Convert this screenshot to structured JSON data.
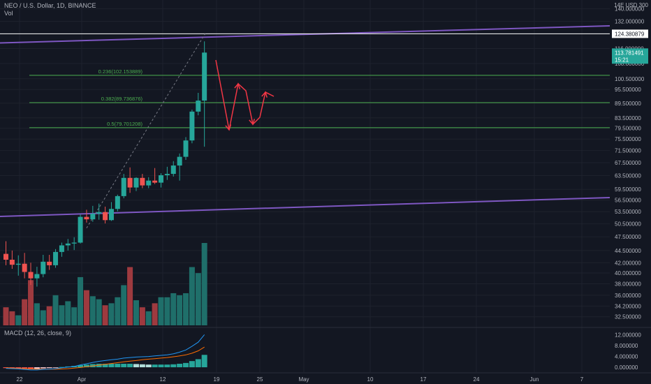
{
  "header": {
    "symbol_title": "NEO / U.S. Dollar, 1D, BINANCE",
    "volume_label": "Vol",
    "price_scale_header": "14E USD 300"
  },
  "macd": {
    "label": "MACD (12, 26, close, 9)"
  },
  "colors": {
    "background": "#131722",
    "grid": "#1e222d",
    "up": "#26a69a",
    "down": "#ef5350",
    "vol_up": "#1f6f6a",
    "vol_down": "#9e3a3f",
    "trendline": "#7e57c2",
    "fib": "#4caf50",
    "arrow": "#f23645",
    "text": "#b2b5be",
    "macd_line": "#2196f3",
    "signal_line": "#ff6d00",
    "current_price_bg": "#26a69a"
  },
  "chart_data": {
    "type": "candlestick",
    "title": "NEO / U.S. Dollar, 1D, BINANCE",
    "x_tick_labels": [
      "22",
      "Apr",
      "12",
      "19",
      "25",
      "May",
      "10",
      "17",
      "24",
      "Jun",
      "7"
    ],
    "price_axis": {
      "scale": "log",
      "range": [
        31.0,
        146.0
      ],
      "tick_labels": [
        "140.000000",
        "132.000000",
        "116.000000",
        "108.000000",
        "100.500000",
        "95.500000",
        "89.500000",
        "83.500000",
        "79.500000",
        "75.500000",
        "71.500000",
        "67.500000",
        "63.500000",
        "59.500000",
        "56.500000",
        "53.500000",
        "50.500000",
        "47.500000",
        "44.500000",
        "42.000000",
        "40.000000",
        "38.000000",
        "36.000000",
        "34.200000",
        "32.500000"
      ]
    },
    "highlighted_prices": {
      "high_line": "124.380879",
      "current_price": "113.781491",
      "countdown": "15:21"
    },
    "fib_levels": [
      {
        "ratio": "0.236",
        "price": 102.153889,
        "label": "0.236(102.153889)"
      },
      {
        "ratio": "0.382",
        "price": 89.736876,
        "label": "0.382(89.736876)"
      },
      {
        "ratio": "0.5",
        "price": 79.701208,
        "label": "0.5(79.701208)"
      }
    ],
    "candles": [
      {
        "o": 43.8,
        "h": 46.5,
        "l": 41.5,
        "c": 42.6,
        "v": 18
      },
      {
        "o": 42.6,
        "h": 44.5,
        "l": 40.8,
        "c": 41.6,
        "v": 14
      },
      {
        "o": 41.6,
        "h": 43.5,
        "l": 39.5,
        "c": 41.8,
        "v": 10
      },
      {
        "o": 41.8,
        "h": 44.0,
        "l": 39.0,
        "c": 40.2,
        "v": 26
      },
      {
        "o": 40.2,
        "h": 42.0,
        "l": 37.8,
        "c": 39.0,
        "v": 45
      },
      {
        "o": 39.0,
        "h": 41.2,
        "l": 37.5,
        "c": 39.8,
        "v": 22
      },
      {
        "o": 39.8,
        "h": 43.6,
        "l": 39.2,
        "c": 42.2,
        "v": 15
      },
      {
        "o": 42.2,
        "h": 43.6,
        "l": 40.6,
        "c": 41.5,
        "v": 19
      },
      {
        "o": 41.5,
        "h": 44.8,
        "l": 41.0,
        "c": 44.2,
        "v": 30
      },
      {
        "o": 44.2,
        "h": 46.2,
        "l": 43.2,
        "c": 45.6,
        "v": 20
      },
      {
        "o": 45.6,
        "h": 47.0,
        "l": 44.5,
        "c": 46.0,
        "v": 24
      },
      {
        "o": 46.0,
        "h": 47.4,
        "l": 44.6,
        "c": 46.2,
        "v": 18
      },
      {
        "o": 46.2,
        "h": 52.8,
        "l": 46.0,
        "c": 52.2,
        "v": 48
      },
      {
        "o": 52.2,
        "h": 54.0,
        "l": 50.8,
        "c": 51.6,
        "v": 35
      },
      {
        "o": 51.6,
        "h": 55.0,
        "l": 51.0,
        "c": 53.0,
        "v": 29
      },
      {
        "o": 53.0,
        "h": 55.6,
        "l": 51.5,
        "c": 53.4,
        "v": 26
      },
      {
        "o": 53.4,
        "h": 54.8,
        "l": 50.6,
        "c": 51.4,
        "v": 20
      },
      {
        "o": 51.4,
        "h": 56.0,
        "l": 51.2,
        "c": 54.2,
        "v": 22
      },
      {
        "o": 54.2,
        "h": 58.0,
        "l": 53.6,
        "c": 57.6,
        "v": 28
      },
      {
        "o": 57.6,
        "h": 64.0,
        "l": 57.0,
        "c": 62.8,
        "v": 40
      },
      {
        "o": 62.8,
        "h": 66.0,
        "l": 58.5,
        "c": 60.0,
        "v": 58
      },
      {
        "o": 60.0,
        "h": 63.0,
        "l": 59.0,
        "c": 62.8,
        "v": 25
      },
      {
        "o": 62.8,
        "h": 64.0,
        "l": 59.8,
        "c": 60.6,
        "v": 18
      },
      {
        "o": 60.6,
        "h": 63.0,
        "l": 59.8,
        "c": 62.0,
        "v": 14
      },
      {
        "o": 62.0,
        "h": 65.8,
        "l": 61.0,
        "c": 61.4,
        "v": 22
      },
      {
        "o": 61.4,
        "h": 64.2,
        "l": 60.0,
        "c": 63.6,
        "v": 28
      },
      {
        "o": 63.6,
        "h": 66.2,
        "l": 62.2,
        "c": 64.0,
        "v": 28
      },
      {
        "o": 64.0,
        "h": 68.0,
        "l": 63.2,
        "c": 66.6,
        "v": 32
      },
      {
        "o": 66.6,
        "h": 70.5,
        "l": 62.0,
        "c": 69.4,
        "v": 30
      },
      {
        "o": 69.4,
        "h": 76.2,
        "l": 68.4,
        "c": 75.0,
        "v": 32
      },
      {
        "o": 75.0,
        "h": 86.8,
        "l": 74.0,
        "c": 86.0,
        "v": 58
      },
      {
        "o": 86.0,
        "h": 94.0,
        "l": 84.5,
        "c": 90.6,
        "v": 52
      },
      {
        "o": 90.6,
        "h": 120.0,
        "l": 72.8,
        "c": 113.78,
        "v": 82
      }
    ],
    "volume": {
      "label": "Vol"
    },
    "macd": {
      "label": "MACD (12, 26, close, 9)",
      "params": [
        12,
        26,
        9
      ],
      "axis_tick_labels": [
        "12.000000",
        "8.000000",
        "4.000000",
        "0.000000"
      ],
      "range": [
        -1.8,
        14.5
      ],
      "macd_line": [
        -0.4,
        -0.5,
        -0.6,
        -0.8,
        -1.0,
        -1.0,
        -0.8,
        -0.7,
        -0.5,
        -0.2,
        0.1,
        0.3,
        0.9,
        1.3,
        1.8,
        2.2,
        2.5,
        2.8,
        3.0,
        3.4,
        3.6,
        3.8,
        3.9,
        4.0,
        4.2,
        4.4,
        4.6,
        5.0,
        5.6,
        6.4,
        7.8,
        9.3,
        12.1
      ],
      "signal_line": [
        -0.2,
        -0.3,
        -0.4,
        -0.5,
        -0.6,
        -0.7,
        -0.7,
        -0.7,
        -0.7,
        -0.6,
        -0.5,
        -0.3,
        -0.1,
        0.2,
        0.5,
        0.8,
        1.1,
        1.4,
        1.7,
        2.0,
        2.3,
        2.5,
        2.8,
        3.0,
        3.2,
        3.4,
        3.6,
        3.9,
        4.2,
        4.6,
        5.2,
        6.1,
        7.5
      ],
      "histogram": [
        -0.3,
        -0.4,
        -0.5,
        -0.6,
        -0.7,
        -0.6,
        -0.4,
        -0.3,
        -0.1,
        0.1,
        0.3,
        0.5,
        0.8,
        1.0,
        1.2,
        1.3,
        1.3,
        1.3,
        1.3,
        1.3,
        1.3,
        1.2,
        1.1,
        1.0,
        1.0,
        1.0,
        1.0,
        1.1,
        1.3,
        1.6,
        2.3,
        3.0,
        4.6
      ]
    }
  }
}
